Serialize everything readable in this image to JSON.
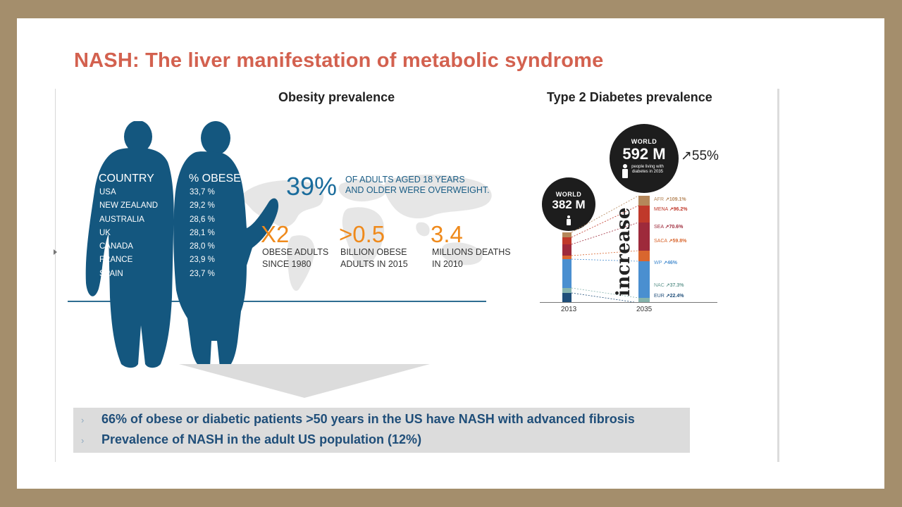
{
  "title": "NASH: The liver manifestation of metabolic syndrome",
  "obesity": {
    "heading": "Obesity prevalence",
    "col_country": "COUNTRY",
    "col_obese": "% OBESE",
    "rows": [
      {
        "country": "USA",
        "pct": "33,7 %"
      },
      {
        "country": "NEW ZEALAND",
        "pct": "29,2 %"
      },
      {
        "country": "AUSTRALIA",
        "pct": "28,6 %"
      },
      {
        "country": "UK",
        "pct": "28,1 %"
      },
      {
        "country": "CANADA",
        "pct": "28,0 %"
      },
      {
        "country": "FRANCE",
        "pct": "23,9 %"
      },
      {
        "country": "SPAIN",
        "pct": "23,7 %"
      }
    ],
    "big_stat": "39%",
    "big_stat_line1": "OF ADULTS AGED 18 YEARS",
    "big_stat_line2": "AND OLDER WERE OVERWEIGHT.",
    "stats": [
      {
        "value": "X2",
        "line1": "OBESE ADULTS",
        "line2": "SINCE 1980"
      },
      {
        "value": ">0.5",
        "line1": "BILLION OBESE",
        "line2": "ADULTS IN 2015"
      },
      {
        "value": "3.4",
        "line1": "MILLIONS DEATHS",
        "line2": "IN 2010"
      }
    ]
  },
  "diabetes": {
    "heading": "Type 2 Diabetes prevalence",
    "world_label": "WORLD",
    "value_2013": "382 M",
    "value_2035": "592 M",
    "caption_2035": "people living with diabetes in 2035",
    "growth": "↗55%",
    "increase_label": "increase",
    "year_2013": "2013",
    "year_2035": "2035",
    "regions": [
      {
        "name": "AFR",
        "change": "↗109.1%",
        "color": "#b5875a"
      },
      {
        "name": "MENA",
        "change": "↗96.2%",
        "color": "#c0392b"
      },
      {
        "name": "SEA",
        "change": "↗70.6%",
        "color": "#9e2a3b"
      },
      {
        "name": "SACA",
        "change": "↗59.8%",
        "color": "#d9662e"
      },
      {
        "name": "WP",
        "change": "↗46%",
        "color": "#4a8fd0"
      },
      {
        "name": "NAC",
        "change": "↗37.3%",
        "color": "#86b4ad"
      },
      {
        "name": "EUR",
        "change": "↗22.4%",
        "color": "#1f4e79"
      }
    ]
  },
  "callout": {
    "bullets": [
      "66% of obese or diabetic patients >50 years in the US have NASH with advanced fibrosis",
      "Prevalence of NASH in the adult US population (12%)"
    ],
    "chevron": "›"
  }
}
